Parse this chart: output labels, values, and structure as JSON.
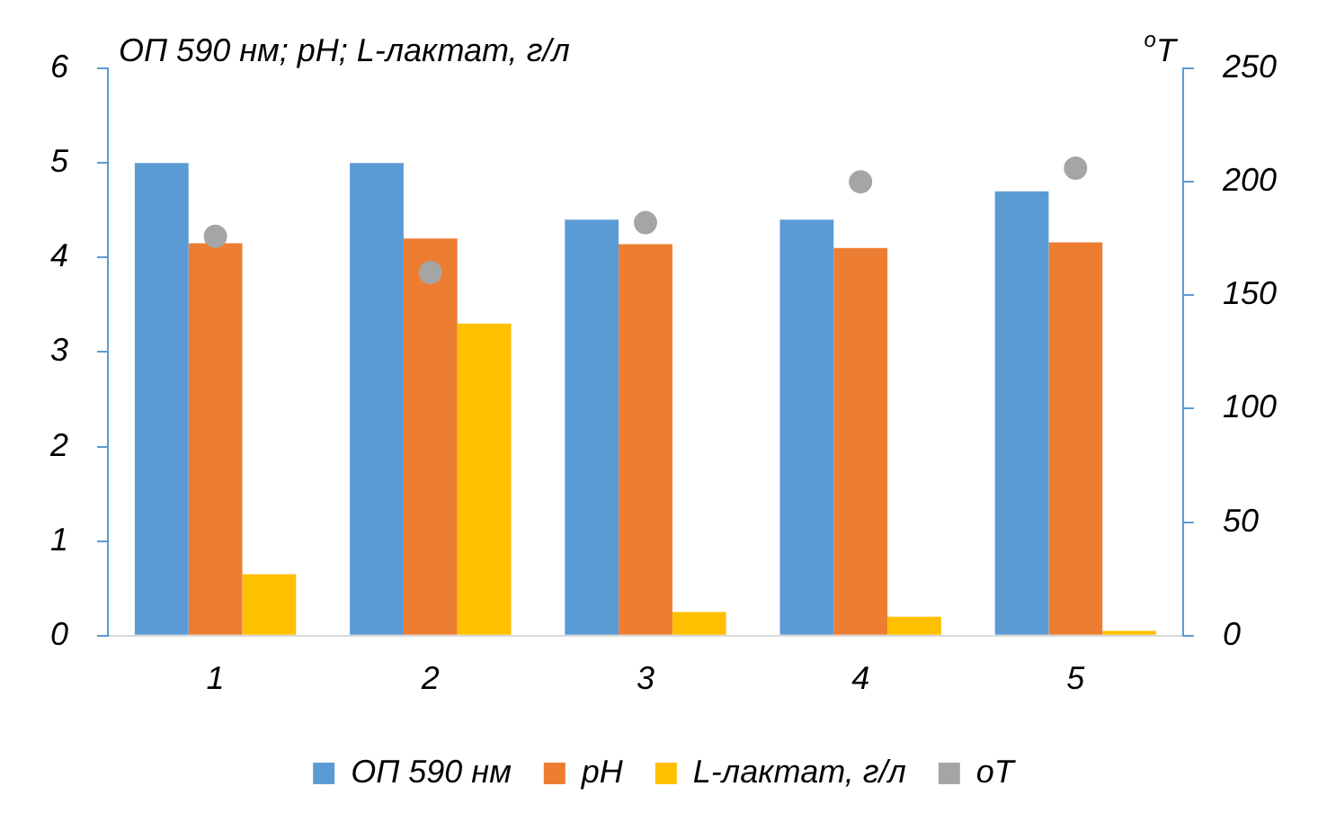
{
  "chart_data": {
    "type": "bar",
    "ylabel": "ОП 590 нм; pH; L-лактат, г/л",
    "y2label": "$^{o}$T",
    "categories": [
      "1",
      "2",
      "3",
      "4",
      "5"
    ],
    "series": [
      {
        "name": "ОП 590 нм",
        "color": "#5b9bd5",
        "values": [
          5,
          5,
          4.4,
          4.4,
          4.7
        ]
      },
      {
        "name": "pH",
        "color": "#ed7d31",
        "values": [
          4.15,
          4.2,
          4.14,
          4.1,
          4.16
        ]
      },
      {
        "name": "L-лактат, г/л",
        "color": "#ffc000",
        "values": [
          0.65,
          3.3,
          0.25,
          0.2,
          0.05
        ]
      },
      {
        "name": "oT",
        "type": "scatter",
        "axis": "y2",
        "color": "#a5a5a5",
        "values": [
          176,
          160,
          182,
          200,
          206
        ]
      }
    ],
    "ylim": [
      0,
      6
    ],
    "yticks": [
      0,
      1,
      2,
      3,
      4,
      5,
      6
    ],
    "y2lim": [
      0,
      250
    ],
    "y2ticks": [
      0,
      50,
      100,
      150,
      200,
      250
    ],
    "grid": false,
    "legend": "bottom",
    "marker": "circle"
  }
}
